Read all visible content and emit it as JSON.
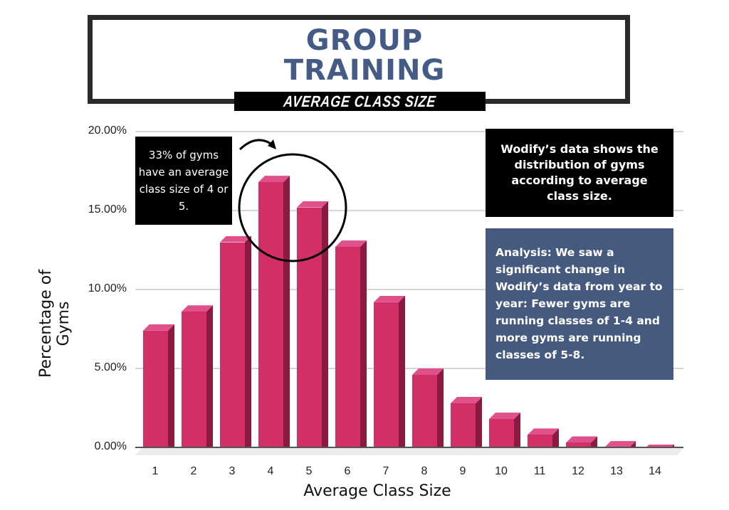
{
  "header": {
    "title_line1": "GROUP",
    "title_line2": "TRAINING",
    "subtitle": "AVERAGE CLASS SIZE"
  },
  "annotations": {
    "left_callout": "33% of gyms have an average class size of 4 or 5.",
    "right_callout": "Wodify’s data shows the distribution of gyms according to average class size.",
    "analysis": "Analysis: We saw a significant change in Wodify’s data from year to year: Fewer gyms are running classes of 1-4 and more gyms are running classes of 5-8."
  },
  "colors": {
    "title": "#445b85",
    "bar_front": "#d22e68",
    "bar_side": "#8a1a42",
    "bar_top": "#e0508a",
    "analysis_box": "#465a80",
    "callout_box": "#000000"
  },
  "chart_data": {
    "type": "bar",
    "title": "Group Training — Average Class Size",
    "xlabel": "Average Class Size",
    "ylabel": "Percentage of Gyms",
    "categories": [
      "1",
      "2",
      "3",
      "4",
      "5",
      "6",
      "7",
      "8",
      "9",
      "10",
      "11",
      "12",
      "13",
      "14"
    ],
    "values": [
      7.8,
      9.0,
      13.4,
      17.2,
      15.6,
      13.1,
      9.6,
      5.0,
      3.2,
      2.2,
      1.2,
      0.7,
      0.4,
      0.2
    ],
    "value_unit": "%",
    "ylim": [
      0,
      20
    ],
    "yticks": [
      "0.00%",
      "5.00%",
      "10.00%",
      "15.00%",
      "20.00%"
    ],
    "grid": true,
    "legend": "none",
    "style": "3d-column",
    "highlight": {
      "categories": [
        "4",
        "5"
      ],
      "shape": "circle",
      "note": "33% of gyms have an average class size of 4 or 5."
    }
  }
}
